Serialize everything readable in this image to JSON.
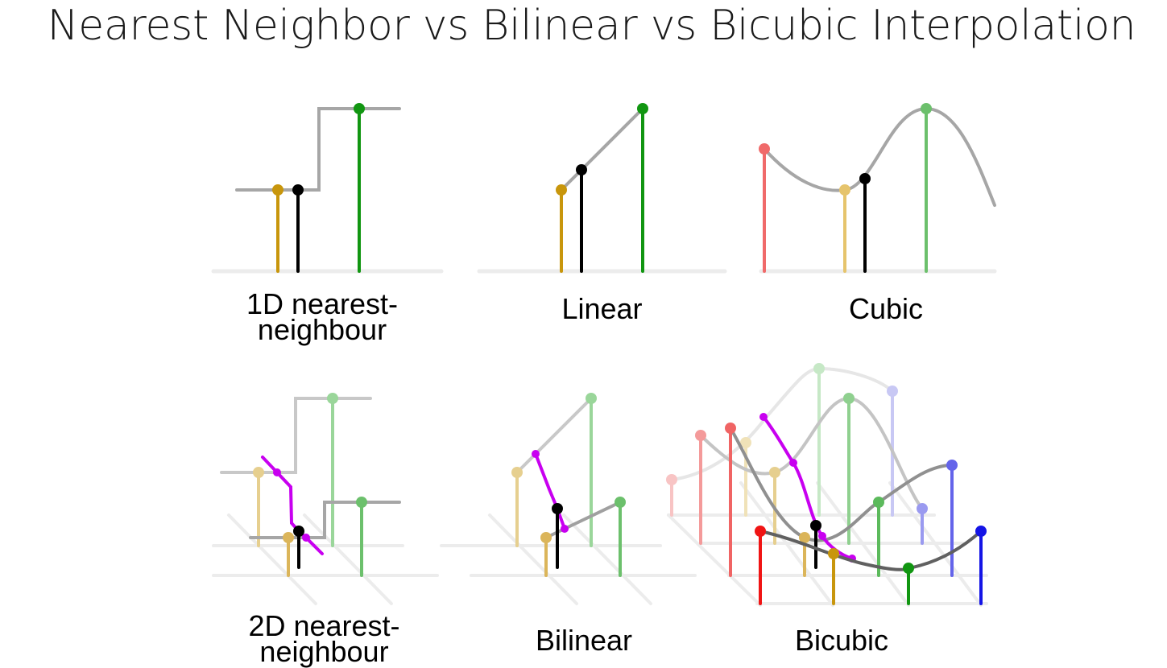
{
  "title": "Nearest Neighbor vs Bilinear vs Bicubic Interpolation",
  "captions": {
    "nn1d": "1D nearest-\nneighbour",
    "linear": "Linear",
    "cubic": "Cubic",
    "nn2d": "2D nearest-\nneighbour",
    "bilinear": "Bilinear",
    "bicubic": "Bicubic"
  },
  "colors": {
    "gold": "#c8960c",
    "green": "#119611",
    "red": "#f01414",
    "blue": "#1414e6",
    "purple": "#c800f0",
    "gray": "#a0a0a0",
    "axis": "#e8e8e8",
    "black": "#000000"
  }
}
